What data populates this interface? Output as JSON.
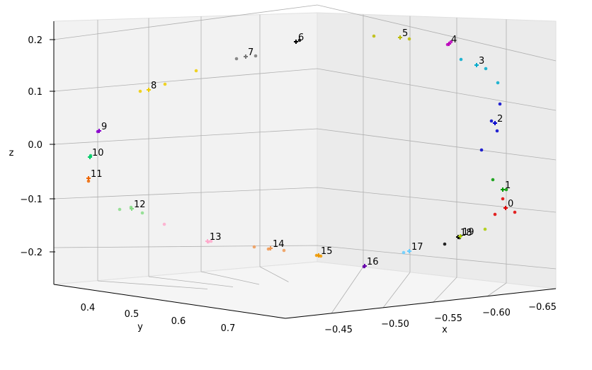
{
  "chart_data": {
    "type": "scatter",
    "projection": "3d",
    "xlabel": "x",
    "ylabel": "y",
    "zlabel": "z",
    "x_ticks": [
      "−0.65",
      "−0.60",
      "−0.55",
      "−0.50",
      "−0.45"
    ],
    "y_ticks": [
      "0.4",
      "0.5",
      "0.6",
      "0.7"
    ],
    "z_ticks": [
      "0.2",
      "0.1",
      "0.0",
      "−0.1",
      "−0.2"
    ],
    "grid": true,
    "labeled_points": [
      {
        "label": "0",
        "color": "#e00000"
      },
      {
        "label": "1",
        "color": "#009900"
      },
      {
        "label": "2",
        "color": "#0000cc"
      },
      {
        "label": "3",
        "color": "#00aacc"
      },
      {
        "label": "4",
        "color": "#bb00bb"
      },
      {
        "label": "5",
        "color": "#bbbb00"
      },
      {
        "label": "6",
        "color": "#000000"
      },
      {
        "label": "7",
        "color": "#777777"
      },
      {
        "label": "8",
        "color": "#eecc00"
      },
      {
        "label": "9",
        "color": "#8800cc"
      },
      {
        "label": "10",
        "color": "#00cc66"
      },
      {
        "label": "11",
        "color": "#ee6600"
      },
      {
        "label": "12",
        "color": "#88dd88"
      },
      {
        "label": "13",
        "color": "#ffaacc"
      },
      {
        "label": "14",
        "color": "#ee9955"
      },
      {
        "label": "15",
        "color": "#ee9900"
      },
      {
        "label": "16",
        "color": "#6600aa"
      },
      {
        "label": "17",
        "color": "#66ccff"
      },
      {
        "label": "18",
        "color": "#000000"
      },
      {
        "label": "19",
        "color": "#aacc00"
      }
    ]
  }
}
